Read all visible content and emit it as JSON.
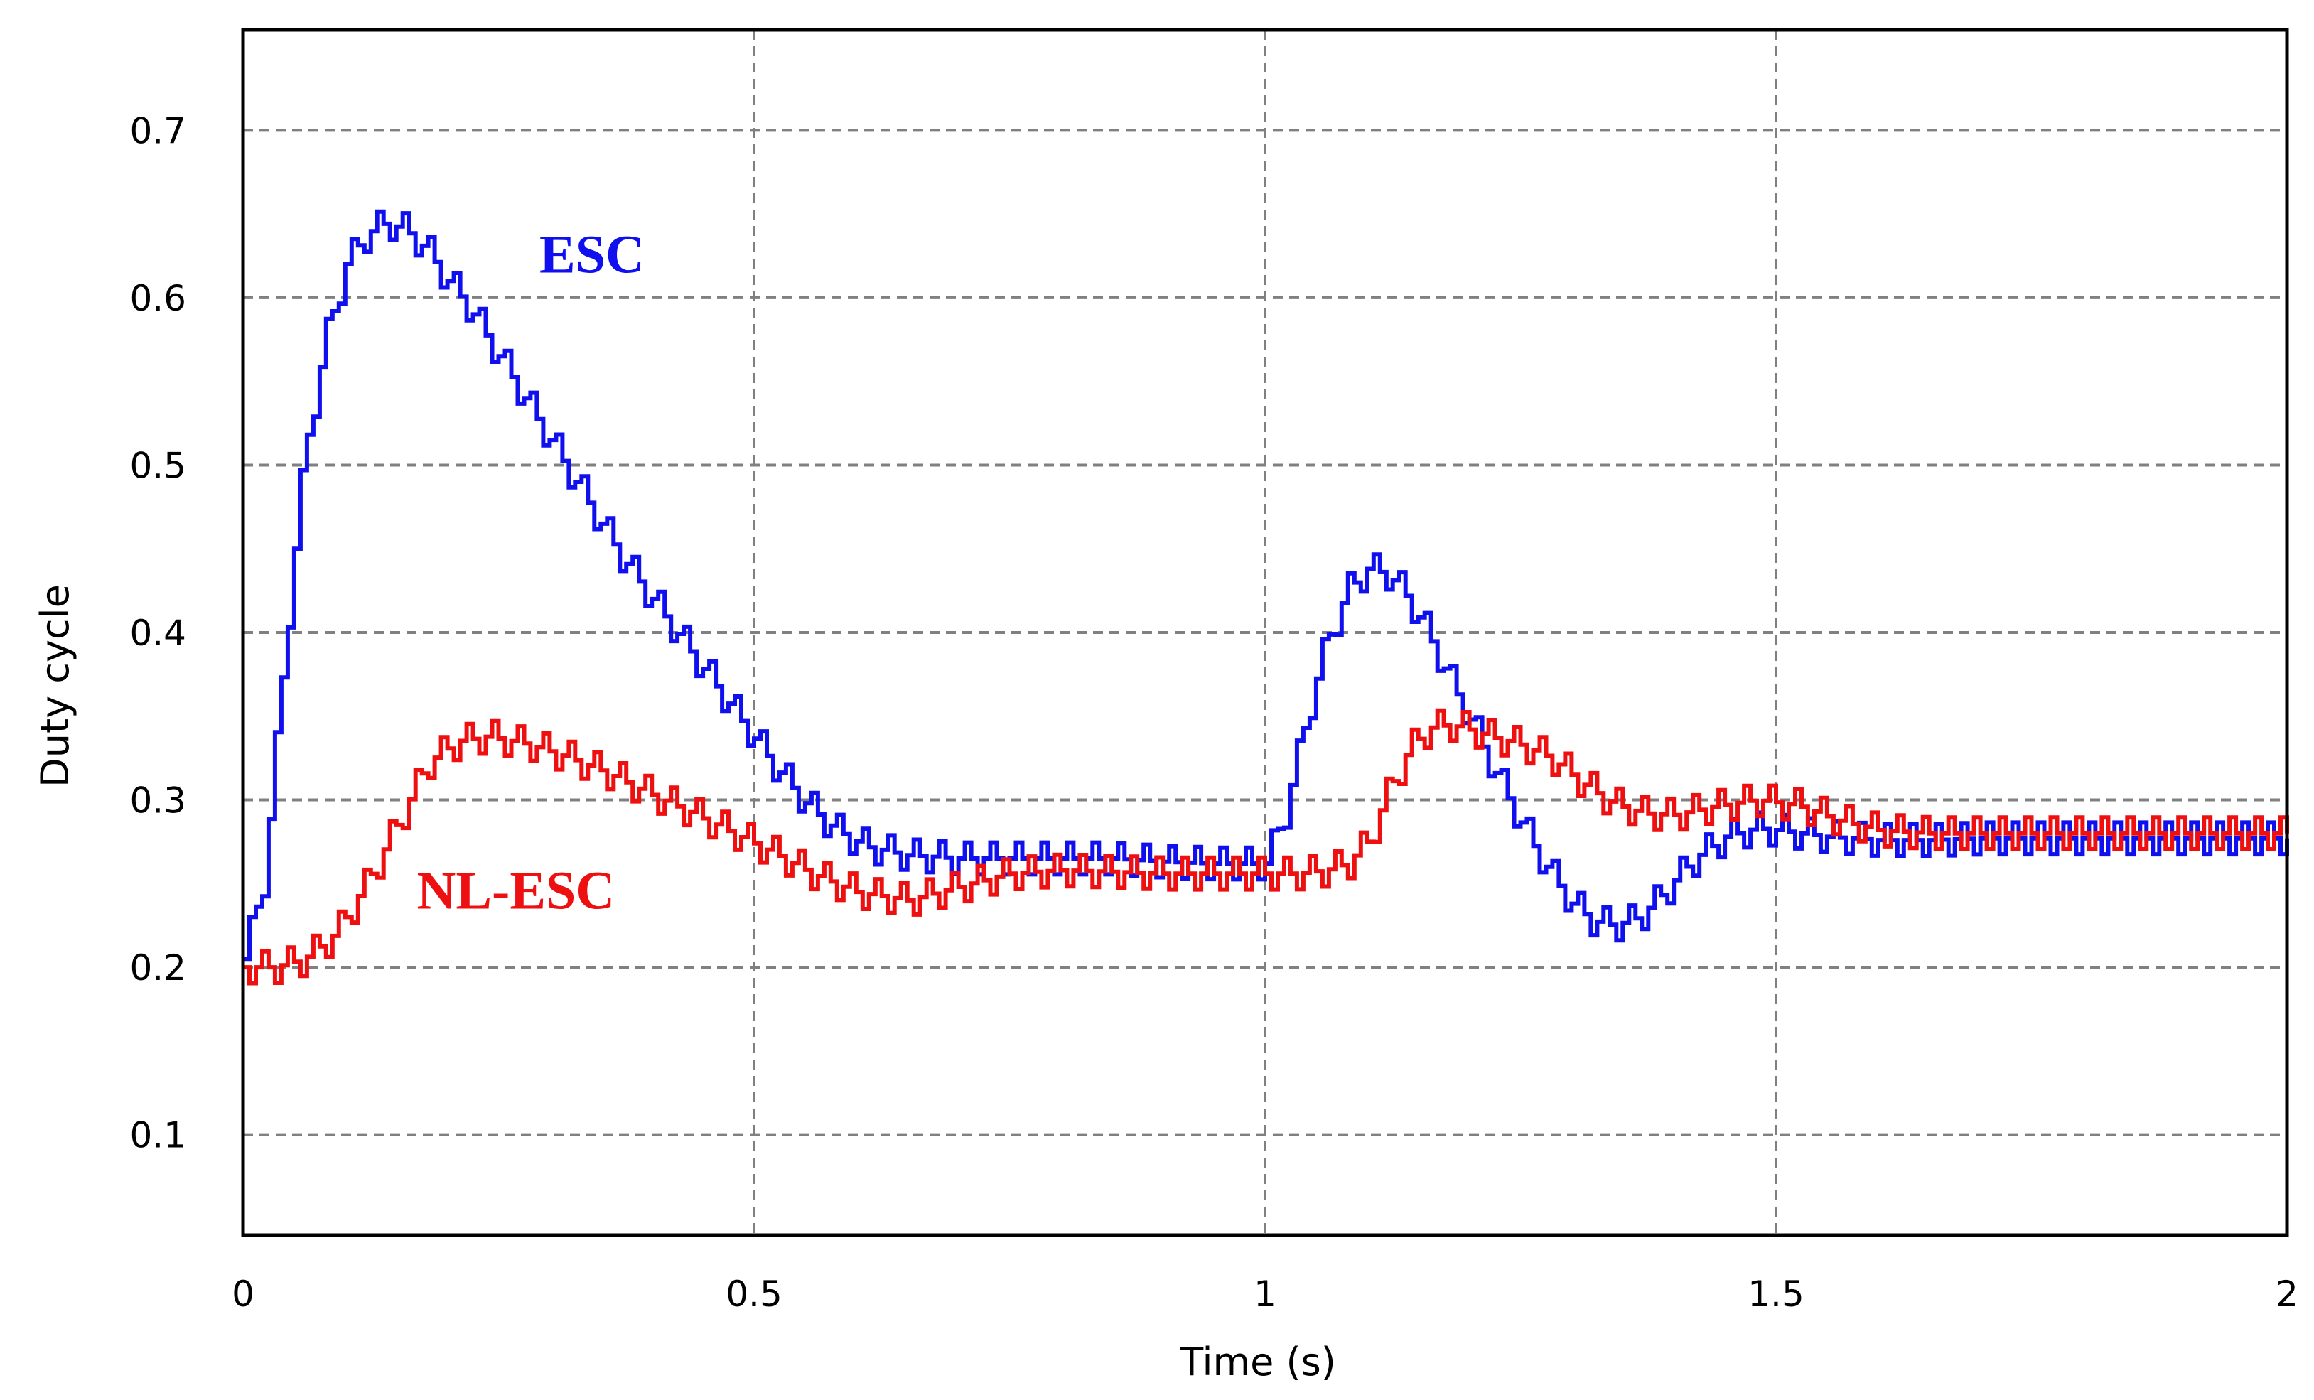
{
  "chart_data": {
    "type": "line",
    "title": "",
    "xlabel": "Time (s)",
    "ylabel": "Duty cycle",
    "xlim": [
      0,
      2
    ],
    "ylim": [
      0.04,
      0.76
    ],
    "xticks": [
      0,
      0.5,
      1,
      1.5,
      2
    ],
    "xtick_labels": [
      "0",
      "0.5",
      "1",
      "1.5",
      "2"
    ],
    "yticks": [
      0.1,
      0.2,
      0.3,
      0.4,
      0.5,
      0.6,
      0.7
    ],
    "ytick_labels": [
      "0.1",
      "0.2",
      "0.3",
      "0.4",
      "0.5",
      "0.6",
      "0.7"
    ],
    "grid": true,
    "legend": "none",
    "series": [
      {
        "name": "ESC",
        "color": "#1010ee",
        "label_at": [
          0.29,
          0.615
        ],
        "x": [
          0,
          0.02,
          0.04,
          0.06,
          0.08,
          0.1,
          0.12,
          0.14,
          0.16,
          0.18,
          0.2,
          0.22,
          0.25,
          0.28,
          0.31,
          0.34,
          0.37,
          0.4,
          0.43,
          0.46,
          0.49,
          0.52,
          0.55,
          0.58,
          0.61,
          0.65,
          0.7,
          0.75,
          0.8,
          0.85,
          0.9,
          0.95,
          1.0,
          1.02,
          1.04,
          1.06,
          1.08,
          1.1,
          1.12,
          1.14,
          1.16,
          1.18,
          1.2,
          1.22,
          1.24,
          1.26,
          1.28,
          1.3,
          1.32,
          1.34,
          1.36,
          1.38,
          1.4,
          1.42,
          1.45,
          1.48,
          1.5,
          1.55,
          1.6,
          1.65,
          1.7,
          1.75,
          1.8,
          1.85,
          1.9,
          1.95,
          2.0
        ],
        "values": [
          0.205,
          0.255,
          0.39,
          0.51,
          0.575,
          0.62,
          0.638,
          0.645,
          0.64,
          0.628,
          0.61,
          0.595,
          0.565,
          0.535,
          0.505,
          0.475,
          0.445,
          0.42,
          0.395,
          0.37,
          0.345,
          0.32,
          0.298,
          0.282,
          0.272,
          0.267,
          0.265,
          0.265,
          0.265,
          0.265,
          0.263,
          0.262,
          0.262,
          0.295,
          0.35,
          0.395,
          0.425,
          0.438,
          0.435,
          0.42,
          0.398,
          0.372,
          0.348,
          0.322,
          0.298,
          0.275,
          0.255,
          0.238,
          0.228,
          0.225,
          0.228,
          0.238,
          0.252,
          0.265,
          0.278,
          0.283,
          0.282,
          0.278,
          0.276,
          0.276,
          0.277,
          0.277,
          0.277,
          0.277,
          0.277,
          0.277,
          0.277
        ]
      },
      {
        "name": "NL-ESC",
        "color": "#ee1010",
        "label_at": [
          0.17,
          0.235
        ],
        "x": [
          0,
          0.03,
          0.06,
          0.09,
          0.12,
          0.15,
          0.18,
          0.21,
          0.24,
          0.28,
          0.32,
          0.36,
          0.4,
          0.44,
          0.48,
          0.52,
          0.56,
          0.6,
          0.65,
          0.7,
          0.75,
          0.8,
          0.85,
          0.9,
          0.95,
          1.0,
          1.03,
          1.06,
          1.08,
          1.1,
          1.12,
          1.14,
          1.16,
          1.18,
          1.2,
          1.22,
          1.25,
          1.28,
          1.31,
          1.34,
          1.37,
          1.4,
          1.44,
          1.48,
          1.52,
          1.56,
          1.6,
          1.65,
          1.7,
          1.75,
          1.8,
          1.85,
          1.9,
          1.95,
          2.0
        ],
        "values": [
          0.2,
          0.2,
          0.205,
          0.22,
          0.25,
          0.285,
          0.322,
          0.335,
          0.338,
          0.333,
          0.325,
          0.315,
          0.303,
          0.292,
          0.28,
          0.268,
          0.255,
          0.245,
          0.24,
          0.248,
          0.256,
          0.258,
          0.257,
          0.256,
          0.256,
          0.256,
          0.256,
          0.258,
          0.262,
          0.275,
          0.305,
          0.33,
          0.343,
          0.345,
          0.342,
          0.338,
          0.333,
          0.325,
          0.31,
          0.298,
          0.292,
          0.291,
          0.296,
          0.3,
          0.297,
          0.288,
          0.282,
          0.28,
          0.28,
          0.28,
          0.28,
          0.28,
          0.28,
          0.28,
          0.28
        ]
      }
    ]
  }
}
